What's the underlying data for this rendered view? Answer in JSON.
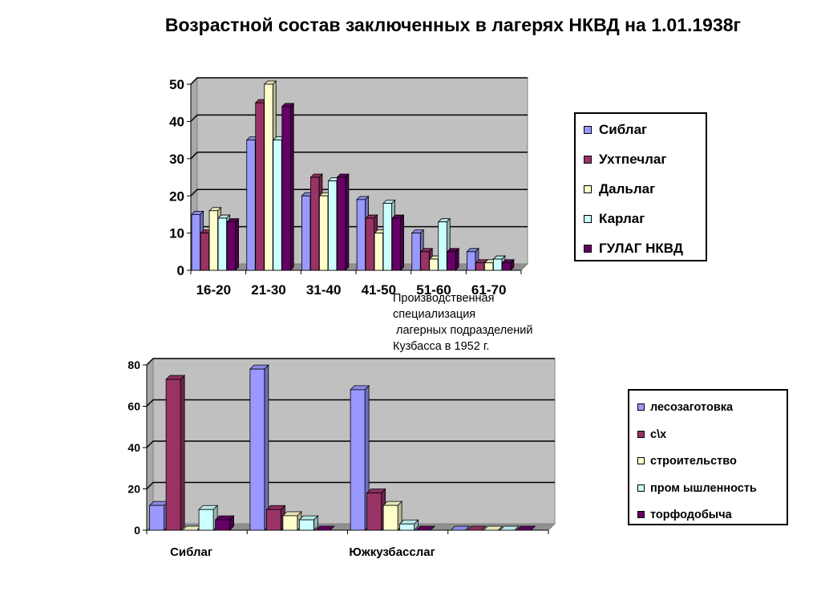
{
  "title": "Возрастной состав заключенных в лагерях НКВД на 1.01.1938г",
  "chart2_caption": "Производственная\nспециализация\n лагерных подразделений\nКузбасса в 1952 г.",
  "chart_data": [
    {
      "type": "bar",
      "categories": [
        "16-20",
        "21-30",
        "31-40",
        "41-50",
        "51-60",
        "61-70"
      ],
      "ylim": [
        0,
        50
      ],
      "yticks": [
        0,
        10,
        20,
        30,
        40,
        50
      ],
      "grid": true,
      "legend_position": "right",
      "series": [
        {
          "name": "Сиблаг",
          "color": "#9999ff",
          "values": [
            15,
            35,
            20,
            19,
            10,
            5
          ]
        },
        {
          "name": "Ухтпечлаг",
          "color": "#993366",
          "values": [
            10,
            45,
            25,
            14,
            5,
            2
          ]
        },
        {
          "name": "Дальлаг",
          "color": "#ffffcc",
          "values": [
            16,
            50,
            20,
            10,
            3,
            2
          ]
        },
        {
          "name": "Карлаг",
          "color": "#ccffff",
          "values": [
            14,
            35,
            24,
            18,
            13,
            3
          ]
        },
        {
          "name": "ГУЛАГ НКВД",
          "color": "#660066",
          "values": [
            13,
            44,
            25,
            14,
            5,
            2
          ]
        }
      ]
    },
    {
      "type": "bar",
      "categories": [
        "Сиблаг",
        "",
        "Южкузбасслаг",
        ""
      ],
      "ylim": [
        0,
        80
      ],
      "yticks": [
        0,
        20,
        40,
        60,
        80
      ],
      "grid": true,
      "legend_position": "right",
      "series": [
        {
          "name": "лесозаготовка",
          "color": "#9999ff",
          "values": [
            12,
            78,
            68,
            0
          ]
        },
        {
          "name": "с\\х",
          "color": "#993366",
          "values": [
            73,
            10,
            18,
            0
          ]
        },
        {
          "name": "строительство",
          "color": "#ffffcc",
          "values": [
            0,
            7,
            12,
            0
          ]
        },
        {
          "name": "пром ышленность",
          "color": "#ccffff",
          "values": [
            10,
            5,
            3,
            0
          ]
        },
        {
          "name": "торфодобыча",
          "color": "#660066",
          "values": [
            5,
            0,
            0,
            0
          ]
        }
      ]
    }
  ]
}
